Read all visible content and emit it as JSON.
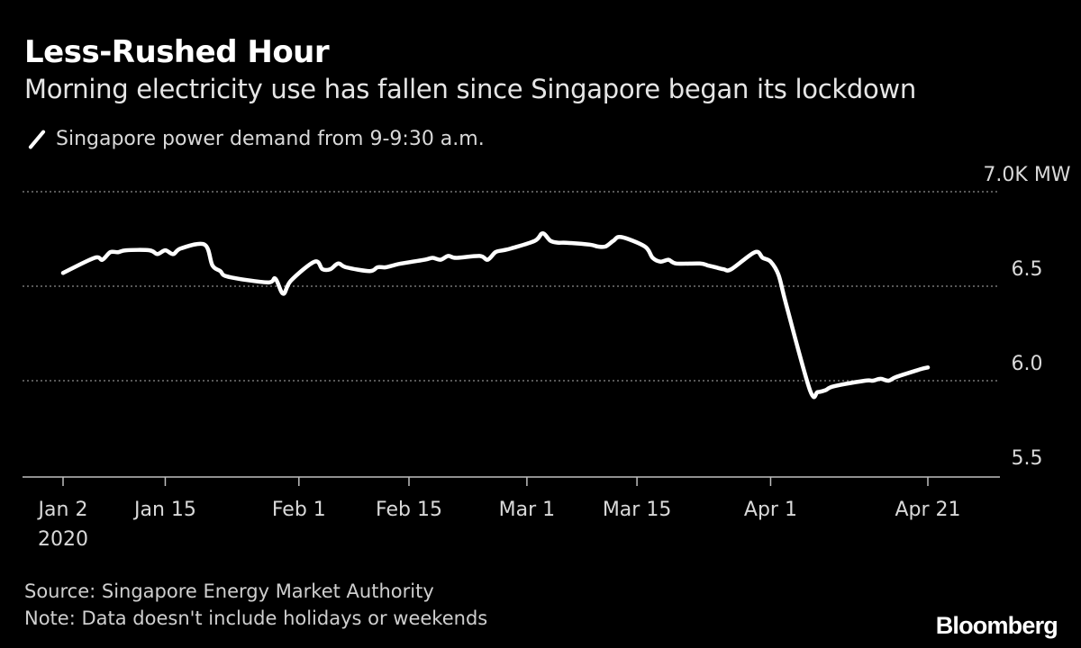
{
  "title": "Less-Rushed Hour",
  "subtitle": "Morning electricity use has fallen since Singapore began its lockdown",
  "legend": {
    "label": "Singapore power demand from 9-9:30 a.m.",
    "icon": "line-swatch-icon"
  },
  "footer": {
    "source": "Source: Singapore Energy Market Authority",
    "note": "Note: Data doesn't include holidays or weekends"
  },
  "brand": "Bloomberg",
  "colors": {
    "background": "#000000",
    "line": "#ffffff",
    "grid": "#8c8c8c",
    "text": "#ffffff",
    "muted": "#cfcfcf"
  },
  "chart_data": {
    "type": "line",
    "title": "Less-Rushed Hour",
    "subtitle": "Morning electricity use has fallen since Singapore began its lockdown",
    "xlabel": "",
    "ylabel": "",
    "ylim": [
      5.5,
      7.0
    ],
    "yticks": [
      {
        "value": 7.0,
        "label": "7.0K MW"
      },
      {
        "value": 6.5,
        "label": "6.5"
      },
      {
        "value": 6.0,
        "label": "6.0"
      },
      {
        "value": 5.5,
        "label": "5.5"
      }
    ],
    "xlim": [
      "2020-01-02",
      "2020-04-21"
    ],
    "xticks": [
      {
        "date": "2020-01-02",
        "label": "Jan 2",
        "sublabel": "2020"
      },
      {
        "date": "2020-01-15",
        "label": "Jan 15"
      },
      {
        "date": "2020-02-01",
        "label": "Feb 1"
      },
      {
        "date": "2020-02-15",
        "label": "Feb 15"
      },
      {
        "date": "2020-03-01",
        "label": "Mar 1"
      },
      {
        "date": "2020-03-15",
        "label": "Mar 15"
      },
      {
        "date": "2020-04-01",
        "label": "Apr 1"
      },
      {
        "date": "2020-04-21",
        "label": "Apr 21"
      }
    ],
    "grid": true,
    "legend": "top-left",
    "series": [
      {
        "name": "Singapore power demand from 9-9:30 a.m.",
        "x": [
          "2020-01-02",
          "2020-01-06",
          "2020-01-07",
          "2020-01-08",
          "2020-01-09",
          "2020-01-10",
          "2020-01-13",
          "2020-01-14",
          "2020-01-15",
          "2020-01-16",
          "2020-01-17",
          "2020-01-20",
          "2020-01-21",
          "2020-01-22",
          "2020-01-23",
          "2020-01-28",
          "2020-01-29",
          "2020-01-30",
          "2020-01-31",
          "2020-02-03",
          "2020-02-04",
          "2020-02-05",
          "2020-02-06",
          "2020-02-07",
          "2020-02-10",
          "2020-02-11",
          "2020-02-12",
          "2020-02-13",
          "2020-02-14",
          "2020-02-17",
          "2020-02-18",
          "2020-02-19",
          "2020-02-20",
          "2020-02-21",
          "2020-02-24",
          "2020-02-25",
          "2020-02-26",
          "2020-02-27",
          "2020-02-28",
          "2020-03-02",
          "2020-03-03",
          "2020-03-04",
          "2020-03-05",
          "2020-03-06",
          "2020-03-09",
          "2020-03-10",
          "2020-03-11",
          "2020-03-12",
          "2020-03-13",
          "2020-03-16",
          "2020-03-17",
          "2020-03-18",
          "2020-03-19",
          "2020-03-20",
          "2020-03-23",
          "2020-03-24",
          "2020-03-25",
          "2020-03-26",
          "2020-03-27",
          "2020-03-30",
          "2020-03-31",
          "2020-04-01",
          "2020-04-02",
          "2020-04-03",
          "2020-04-06",
          "2020-04-07",
          "2020-04-08",
          "2020-04-09",
          "2020-04-13",
          "2020-04-14",
          "2020-04-15",
          "2020-04-16",
          "2020-04-17",
          "2020-04-20",
          "2020-04-21"
        ],
        "values": [
          6.57,
          6.65,
          6.64,
          6.68,
          6.68,
          6.69,
          6.69,
          6.67,
          6.69,
          6.67,
          6.7,
          6.72,
          6.61,
          6.58,
          6.55,
          6.52,
          6.54,
          6.46,
          6.53,
          6.63,
          6.59,
          6.59,
          6.62,
          6.6,
          6.58,
          6.6,
          6.6,
          6.61,
          6.62,
          6.64,
          6.65,
          6.64,
          6.66,
          6.65,
          6.66,
          6.64,
          6.68,
          6.69,
          6.7,
          6.74,
          6.78,
          6.74,
          6.73,
          6.73,
          6.72,
          6.71,
          6.71,
          6.74,
          6.76,
          6.71,
          6.65,
          6.63,
          6.64,
          6.62,
          6.62,
          6.61,
          6.6,
          6.59,
          6.59,
          6.68,
          6.65,
          6.63,
          6.56,
          6.4,
          5.95,
          5.94,
          5.95,
          5.97,
          6.0,
          6.0,
          6.01,
          6.0,
          6.02,
          6.06,
          6.07
        ]
      }
    ]
  }
}
